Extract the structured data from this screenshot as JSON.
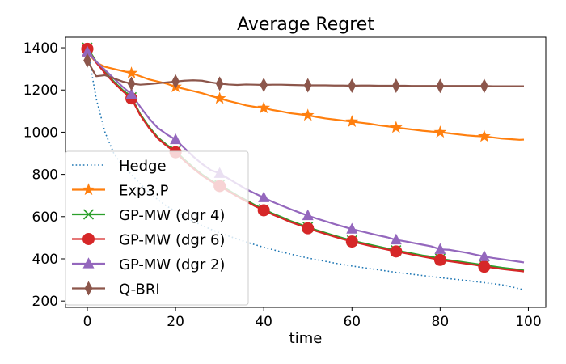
{
  "chart_data": {
    "type": "line",
    "title": "Average Regret",
    "xlabel": "time",
    "ylabel": "",
    "xlim": [
      -4.95,
      103.95
    ],
    "ylim": [
      170,
      1450
    ],
    "xticks": [
      0,
      20,
      40,
      60,
      80,
      100
    ],
    "yticks": [
      200,
      400,
      600,
      800,
      1000,
      1200,
      1400
    ],
    "grid": false,
    "legend_position": "lower-left",
    "x": [
      0,
      2,
      4,
      6,
      8,
      10,
      12,
      14,
      16,
      18,
      20,
      22,
      24,
      26,
      28,
      30,
      32,
      34,
      36,
      38,
      40,
      42,
      44,
      46,
      48,
      50,
      52,
      54,
      56,
      58,
      60,
      62,
      64,
      66,
      68,
      70,
      72,
      74,
      76,
      78,
      80,
      82,
      84,
      86,
      88,
      90,
      92,
      94,
      96,
      98,
      99
    ],
    "series": [
      {
        "name": "Hedge",
        "color": "#1f77b4",
        "style": "dotted",
        "marker": "none",
        "values": [
          1400,
          1160,
          1000,
          900,
          840,
          800,
          755,
          715,
          680,
          650,
          625,
          600,
          578,
          558,
          540,
          523,
          508,
          494,
          480,
          467,
          455,
          444,
          433,
          423,
          413,
          404,
          396,
          388,
          380,
          373,
          366,
          360,
          354,
          348,
          342,
          336,
          331,
          326,
          321,
          316,
          311,
          306,
          302,
          297,
          292,
          287,
          282,
          277,
          268,
          258,
          253
        ]
      },
      {
        "name": "Exp3.P",
        "color": "#ff7f0e",
        "style": "solid",
        "marker": "star",
        "values": [
          1380,
          1330,
          1310,
          1300,
          1290,
          1280,
          1265,
          1250,
          1240,
          1230,
          1215,
          1205,
          1195,
          1185,
          1172,
          1160,
          1148,
          1138,
          1127,
          1120,
          1115,
          1105,
          1098,
          1090,
          1085,
          1080,
          1072,
          1065,
          1060,
          1055,
          1050,
          1045,
          1040,
          1033,
          1028,
          1022,
          1017,
          1012,
          1007,
          1003,
          1000,
          995,
          990,
          985,
          982,
          980,
          975,
          970,
          967,
          964,
          965
        ]
      },
      {
        "name": "GP-MW (dgr 4)",
        "color": "#2ca02c",
        "style": "solid",
        "marker": "x",
        "values": [
          1400,
          1335,
          1285,
          1240,
          1200,
          1165,
          1085,
          1025,
          975,
          940,
          910,
          870,
          833,
          800,
          772,
          750,
          725,
          700,
          678,
          655,
          635,
          615,
          598,
          580,
          565,
          550,
          536,
          523,
          510,
          498,
          487,
          477,
          467,
          458,
          449,
          440,
          432,
          424,
          416,
          410,
          400,
          394,
          388,
          382,
          376,
          370,
          364,
          358,
          353,
          348,
          345
        ]
      },
      {
        "name": "GP-MW (dgr 6)",
        "color": "#d62728",
        "style": "solid",
        "marker": "circle",
        "values": [
          1395,
          1330,
          1280,
          1235,
          1195,
          1160,
          1080,
          1020,
          970,
          935,
          905,
          865,
          828,
          795,
          768,
          745,
          720,
          696,
          673,
          650,
          630,
          610,
          593,
          575,
          560,
          545,
          531,
          518,
          505,
          493,
          482,
          472,
          462,
          453,
          444,
          435,
          427,
          419,
          411,
          403,
          395,
          389,
          383,
          377,
          371,
          363,
          358,
          352,
          347,
          343,
          340
        ]
      },
      {
        "name": "GP-MW (dgr 2)",
        "color": "#9467bd",
        "style": "solid",
        "marker": "triangle",
        "values": [
          1380,
          1335,
          1295,
          1255,
          1215,
          1180,
          1120,
          1065,
          1020,
          990,
          965,
          925,
          885,
          850,
          820,
          805,
          780,
          755,
          730,
          710,
          690,
          670,
          653,
          636,
          620,
          605,
          591,
          578,
          565,
          553,
          541,
          531,
          521,
          511,
          502,
          490,
          483,
          475,
          467,
          459,
          445,
          443,
          436,
          429,
          420,
          411,
          404,
          398,
          392,
          386,
          383
        ]
      },
      {
        "name": "Q-BRI",
        "color": "#8c564b",
        "style": "solid",
        "marker": "diamond",
        "values": [
          1340,
          1265,
          1270,
          1255,
          1240,
          1230,
          1225,
          1228,
          1232,
          1236,
          1240,
          1244,
          1246,
          1244,
          1236,
          1230,
          1226,
          1224,
          1226,
          1225,
          1224,
          1225,
          1225,
          1224,
          1223,
          1222,
          1222,
          1222,
          1221,
          1221,
          1220,
          1221,
          1221,
          1220,
          1220,
          1220,
          1220,
          1219,
          1219,
          1219,
          1219,
          1219,
          1219,
          1219,
          1219,
          1219,
          1218,
          1218,
          1218,
          1218,
          1218
        ]
      }
    ]
  }
}
